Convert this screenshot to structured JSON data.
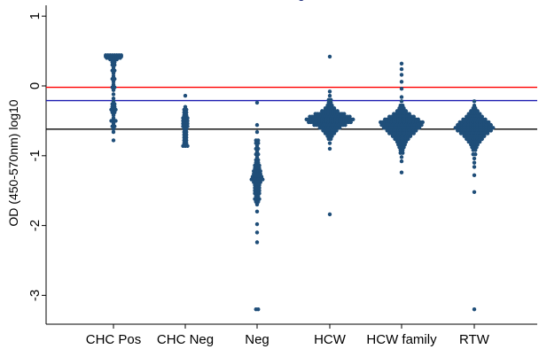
{
  "chart_data": {
    "type": "scatter",
    "title": "g",
    "ylabel": "OD (450-570nm) log10",
    "xlabel": "",
    "ylim": [
      -3.35,
      1.1
    ],
    "yticks": [
      1,
      0,
      -1,
      -2,
      -3
    ],
    "ytick_labels": [
      "1",
      "0",
      "-1",
      "-2",
      "-3"
    ],
    "categories": [
      "CHC Pos",
      "CHC Neg",
      "Neg",
      "HCW",
      "HCW family",
      "RTW"
    ],
    "grid": false,
    "legend": "none",
    "reference_lines": [
      {
        "y": -0.02,
        "color": "#ff0000"
      },
      {
        "y": -0.21,
        "color": "#1a1ab0"
      },
      {
        "y": -0.62,
        "color": "#000000"
      }
    ],
    "marker_color": "#1f4e79",
    "groups": [
      {
        "category": "CHC Pos",
        "clusters": [
          {
            "y": 0.44,
            "n": 8
          },
          {
            "y": 0.42,
            "n": 8
          },
          {
            "y": 0.4,
            "n": 7
          },
          {
            "y": 0.38,
            "n": 4
          },
          {
            "y": 0.34,
            "n": 2
          },
          {
            "y": 0.3,
            "n": 2
          },
          {
            "y": 0.26,
            "n": 1
          },
          {
            "y": 0.22,
            "n": 2
          },
          {
            "y": 0.18,
            "n": 1
          },
          {
            "y": 0.14,
            "n": 1
          },
          {
            "y": 0.1,
            "n": 2
          },
          {
            "y": 0.06,
            "n": 1
          },
          {
            "y": 0.02,
            "n": 1
          },
          {
            "y": -0.02,
            "n": 2
          },
          {
            "y": -0.06,
            "n": 1
          },
          {
            "y": -0.12,
            "n": 1
          },
          {
            "y": -0.18,
            "n": 1
          },
          {
            "y": -0.22,
            "n": 1
          },
          {
            "y": -0.26,
            "n": 2
          },
          {
            "y": -0.3,
            "n": 2
          },
          {
            "y": -0.34,
            "n": 3
          },
          {
            "y": -0.38,
            "n": 2
          },
          {
            "y": -0.42,
            "n": 1
          },
          {
            "y": -0.46,
            "n": 1
          },
          {
            "y": -0.5,
            "n": 3
          },
          {
            "y": -0.54,
            "n": 1
          },
          {
            "y": -0.58,
            "n": 2
          },
          {
            "y": -0.62,
            "n": 1
          },
          {
            "y": -0.66,
            "n": 1
          },
          {
            "y": -0.78,
            "n": 1
          }
        ]
      },
      {
        "category": "CHC Neg",
        "clusters": [
          {
            "y": -0.14,
            "n": 1
          },
          {
            "y": -0.3,
            "n": 1
          },
          {
            "y": -0.34,
            "n": 2
          },
          {
            "y": -0.38,
            "n": 2
          },
          {
            "y": -0.42,
            "n": 2
          },
          {
            "y": -0.46,
            "n": 3
          },
          {
            "y": -0.5,
            "n": 3
          },
          {
            "y": -0.54,
            "n": 3
          },
          {
            "y": -0.58,
            "n": 3
          },
          {
            "y": -0.62,
            "n": 2
          },
          {
            "y": -0.66,
            "n": 2
          },
          {
            "y": -0.7,
            "n": 2
          },
          {
            "y": -0.74,
            "n": 2
          },
          {
            "y": -0.78,
            "n": 2
          },
          {
            "y": -0.82,
            "n": 2
          },
          {
            "y": -0.86,
            "n": 3
          }
        ]
      },
      {
        "category": "Neg",
        "clusters": [
          {
            "y": -0.24,
            "n": 1
          },
          {
            "y": -0.56,
            "n": 1
          },
          {
            "y": -0.66,
            "n": 1
          },
          {
            "y": -0.78,
            "n": 2
          },
          {
            "y": -0.82,
            "n": 2
          },
          {
            "y": -0.86,
            "n": 1
          },
          {
            "y": -0.9,
            "n": 2
          },
          {
            "y": -0.94,
            "n": 1
          },
          {
            "y": -0.98,
            "n": 2
          },
          {
            "y": -1.02,
            "n": 1
          },
          {
            "y": -1.06,
            "n": 2
          },
          {
            "y": -1.1,
            "n": 2
          },
          {
            "y": -1.14,
            "n": 3
          },
          {
            "y": -1.18,
            "n": 3
          },
          {
            "y": -1.22,
            "n": 4
          },
          {
            "y": -1.26,
            "n": 4
          },
          {
            "y": -1.3,
            "n": 5
          },
          {
            "y": -1.34,
            "n": 6
          },
          {
            "y": -1.38,
            "n": 4
          },
          {
            "y": -1.42,
            "n": 3
          },
          {
            "y": -1.46,
            "n": 3
          },
          {
            "y": -1.5,
            "n": 3
          },
          {
            "y": -1.54,
            "n": 3
          },
          {
            "y": -1.58,
            "n": 2
          },
          {
            "y": -1.62,
            "n": 3
          },
          {
            "y": -1.66,
            "n": 2
          },
          {
            "y": -1.7,
            "n": 1
          },
          {
            "y": -1.8,
            "n": 1
          },
          {
            "y": -1.98,
            "n": 1
          },
          {
            "y": -2.1,
            "n": 1
          },
          {
            "y": -2.24,
            "n": 1
          },
          {
            "y": -3.2,
            "n": 2
          }
        ]
      },
      {
        "category": "HCW",
        "clusters": [
          {
            "y": 0.42,
            "n": 1
          },
          {
            "y": -0.08,
            "n": 1
          },
          {
            "y": -0.14,
            "n": 1
          },
          {
            "y": -0.2,
            "n": 2
          },
          {
            "y": -0.24,
            "n": 2
          },
          {
            "y": -0.28,
            "n": 3
          },
          {
            "y": -0.32,
            "n": 5
          },
          {
            "y": -0.36,
            "n": 8
          },
          {
            "y": -0.4,
            "n": 14
          },
          {
            "y": -0.44,
            "n": 19
          },
          {
            "y": -0.48,
            "n": 22
          },
          {
            "y": -0.52,
            "n": 20
          },
          {
            "y": -0.56,
            "n": 15
          },
          {
            "y": -0.6,
            "n": 10
          },
          {
            "y": -0.64,
            "n": 7
          },
          {
            "y": -0.68,
            "n": 5
          },
          {
            "y": -0.72,
            "n": 3
          },
          {
            "y": -0.76,
            "n": 2
          },
          {
            "y": -0.82,
            "n": 1
          },
          {
            "y": -0.9,
            "n": 1
          },
          {
            "y": -1.84,
            "n": 1
          }
        ]
      },
      {
        "category": "HCW family",
        "clusters": [
          {
            "y": 0.32,
            "n": 1
          },
          {
            "y": 0.24,
            "n": 1
          },
          {
            "y": 0.16,
            "n": 1
          },
          {
            "y": 0.06,
            "n": 1
          },
          {
            "y": -0.04,
            "n": 1
          },
          {
            "y": -0.16,
            "n": 1
          },
          {
            "y": -0.22,
            "n": 1
          },
          {
            "y": -0.28,
            "n": 2
          },
          {
            "y": -0.32,
            "n": 3
          },
          {
            "y": -0.36,
            "n": 5
          },
          {
            "y": -0.4,
            "n": 8
          },
          {
            "y": -0.44,
            "n": 12
          },
          {
            "y": -0.48,
            "n": 16
          },
          {
            "y": -0.52,
            "n": 20
          },
          {
            "y": -0.56,
            "n": 19
          },
          {
            "y": -0.6,
            "n": 17
          },
          {
            "y": -0.64,
            "n": 14
          },
          {
            "y": -0.68,
            "n": 12
          },
          {
            "y": -0.72,
            "n": 9
          },
          {
            "y": -0.76,
            "n": 7
          },
          {
            "y": -0.8,
            "n": 5
          },
          {
            "y": -0.84,
            "n": 4
          },
          {
            "y": -0.88,
            "n": 3
          },
          {
            "y": -0.92,
            "n": 2
          },
          {
            "y": -0.96,
            "n": 2
          },
          {
            "y": -1.02,
            "n": 1
          },
          {
            "y": -1.08,
            "n": 1
          },
          {
            "y": -1.24,
            "n": 1
          }
        ]
      },
      {
        "category": "RTW",
        "clusters": [
          {
            "y": -0.22,
            "n": 1
          },
          {
            "y": -0.28,
            "n": 1
          },
          {
            "y": -0.32,
            "n": 2
          },
          {
            "y": -0.36,
            "n": 4
          },
          {
            "y": -0.4,
            "n": 6
          },
          {
            "y": -0.44,
            "n": 8
          },
          {
            "y": -0.48,
            "n": 11
          },
          {
            "y": -0.52,
            "n": 14
          },
          {
            "y": -0.56,
            "n": 16
          },
          {
            "y": -0.6,
            "n": 18
          },
          {
            "y": -0.64,
            "n": 16
          },
          {
            "y": -0.68,
            "n": 13
          },
          {
            "y": -0.72,
            "n": 10
          },
          {
            "y": -0.76,
            "n": 8
          },
          {
            "y": -0.8,
            "n": 6
          },
          {
            "y": -0.84,
            "n": 4
          },
          {
            "y": -0.88,
            "n": 3
          },
          {
            "y": -0.92,
            "n": 2
          },
          {
            "y": -0.98,
            "n": 2
          },
          {
            "y": -1.04,
            "n": 1
          },
          {
            "y": -1.1,
            "n": 1
          },
          {
            "y": -1.16,
            "n": 1
          },
          {
            "y": -1.28,
            "n": 1
          },
          {
            "y": -1.52,
            "n": 1
          },
          {
            "y": -3.2,
            "n": 1
          }
        ]
      }
    ]
  }
}
